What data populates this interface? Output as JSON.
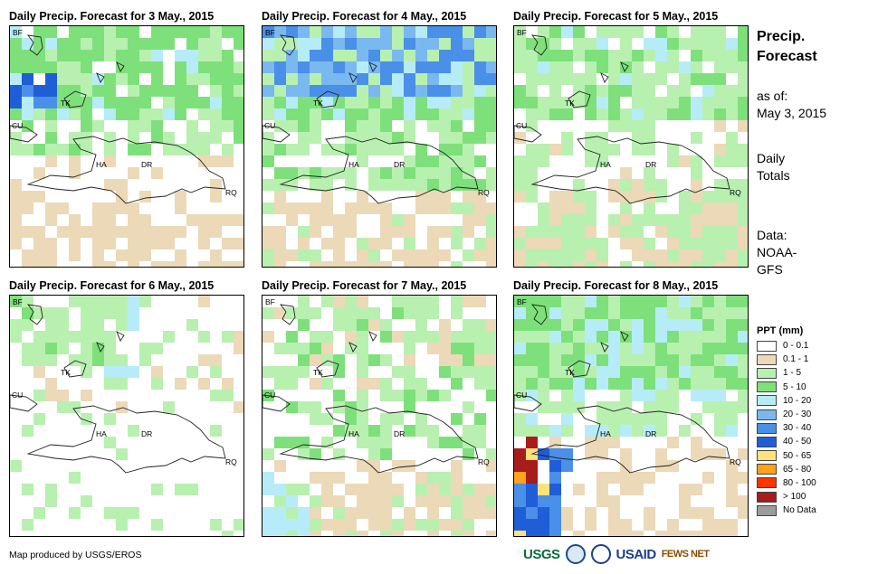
{
  "panels": [
    {
      "title": "Daily Precip. Forecast for 3 May., 2015"
    },
    {
      "title": "Daily Precip. Forecast for 4 May., 2015"
    },
    {
      "title": "Daily Precip. Forecast for 5 May., 2015"
    },
    {
      "title": "Daily Precip. Forecast for 6 May., 2015"
    },
    {
      "title": "Daily Precip. Forecast for 7 May., 2015"
    },
    {
      "title": "Daily Precip. Forecast for 8 May., 2015"
    }
  ],
  "map_labels": {
    "bf": "BF",
    "tk": "TK",
    "cu": "CU",
    "ha": "HA",
    "dr": "DR",
    "rq": "RQ"
  },
  "side": {
    "title_line1": "Precip.",
    "title_line2": "Forecast",
    "asof_line1": "as of:",
    "asof_line2": "May 3, 2015",
    "totals_line1": "Daily",
    "totals_line2": "Totals",
    "data_line1": "Data:",
    "data_line2": "NOAA-",
    "data_line3": "GFS"
  },
  "legend": {
    "title": "PPT (mm)",
    "items": [
      {
        "label": "0 - 0.1",
        "color": "#ffffff"
      },
      {
        "label": "0.1 - 1",
        "color": "#ecd9b8"
      },
      {
        "label": "1 - 5",
        "color": "#b8f0b0"
      },
      {
        "label": "5 - 10",
        "color": "#7ee07a"
      },
      {
        "label": "10 - 20",
        "color": "#b6ecf7"
      },
      {
        "label": "20 - 30",
        "color": "#7ab8f0"
      },
      {
        "label": "30 - 40",
        "color": "#4a8fe8"
      },
      {
        "label": "40 - 50",
        "color": "#1f5ed6"
      },
      {
        "label": "50 - 65",
        "color": "#ffe27a"
      },
      {
        "label": "65 - 80",
        "color": "#ffa31a"
      },
      {
        "label": "80 - 100",
        "color": "#ff3300"
      },
      {
        "label": "> 100",
        "color": "#a81c1c"
      },
      {
        "label": "No Data",
        "color": "#9c9c9c"
      }
    ]
  },
  "footer": {
    "credit": "Map produced by USGS/EROS"
  },
  "logos": {
    "usgs": "USGS",
    "usaid": "USAID",
    "fews": "FEWS NET"
  }
}
